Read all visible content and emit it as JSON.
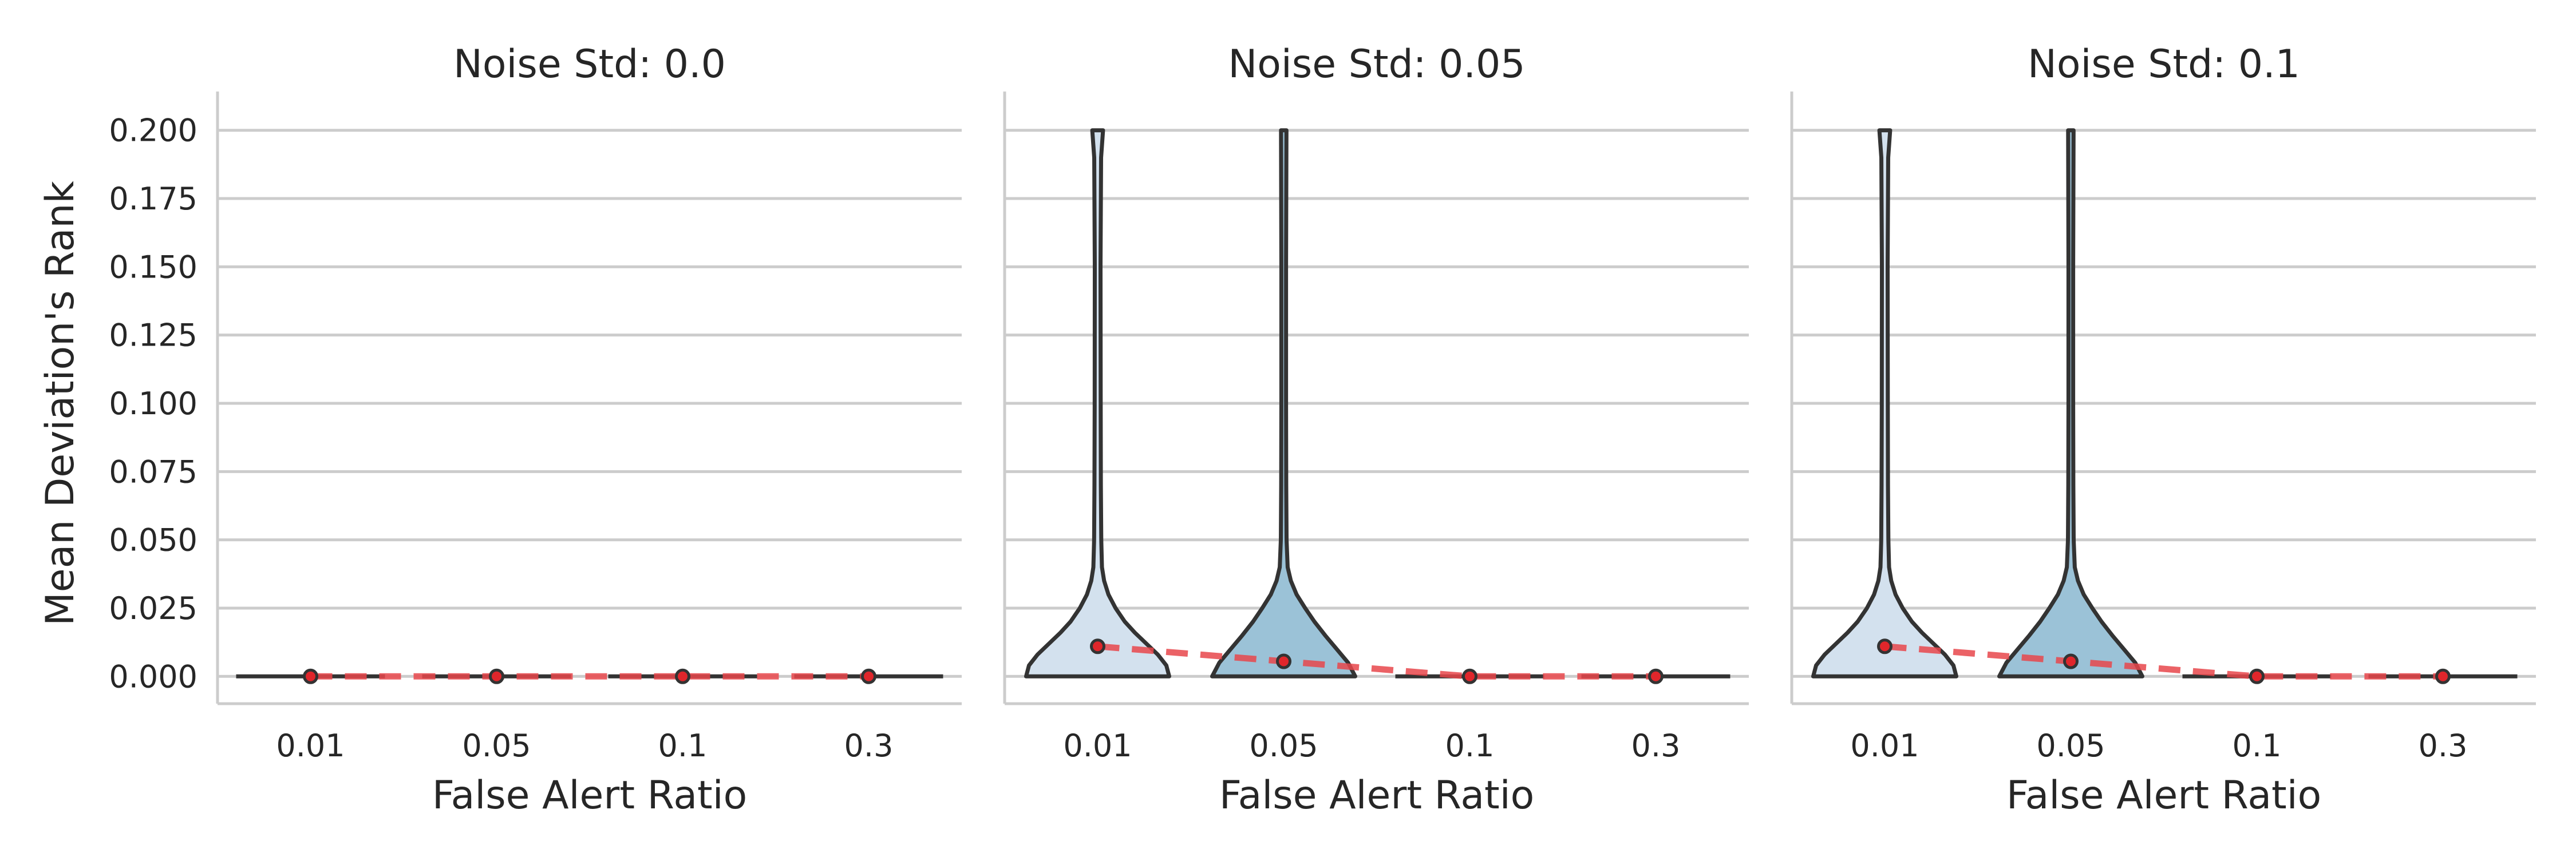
{
  "chart_data": {
    "type": "violin",
    "ylabel": "Mean Deviation's Rank",
    "xlabel": "False Alert Ratio",
    "categories": [
      "0.01",
      "0.05",
      "0.1",
      "0.3"
    ],
    "yticks": [
      "0.000",
      "0.025",
      "0.050",
      "0.075",
      "0.100",
      "0.125",
      "0.150",
      "0.175",
      "0.200"
    ],
    "ylim": [
      -0.01,
      0.21
    ],
    "grid": true,
    "colors": {
      "violin_fills": [
        "#d3e1ee",
        "#9bc2d7",
        "#5a9cc3",
        "#2c6fa8"
      ],
      "violin_edge": "#333333",
      "trend_line": "#e8464b",
      "mean_marker": "#e0262b",
      "grid": "#cccccc",
      "spine": "#cccccc"
    },
    "panels": [
      {
        "title": "Noise Std: 0.0",
        "means": [
          0.0,
          0.0,
          0.0,
          0.0
        ],
        "violins": [
          {
            "category": "0.01",
            "min": 0.0,
            "max": 0.0,
            "profile": []
          },
          {
            "category": "0.05",
            "min": 0.0,
            "max": 0.0,
            "profile": []
          },
          {
            "category": "0.1",
            "min": 0.0,
            "max": 0.0,
            "profile": []
          },
          {
            "category": "0.3",
            "min": 0.0,
            "max": 0.0,
            "profile": []
          }
        ]
      },
      {
        "title": "Noise Std: 0.05",
        "means": [
          0.011,
          0.0055,
          0.0,
          0.0
        ],
        "violins": [
          {
            "category": "0.01",
            "min": 0.0,
            "max": 0.2,
            "profile": [
              [
                0.0,
                1.0
              ],
              [
                0.004,
                0.96
              ],
              [
                0.008,
                0.84
              ],
              [
                0.012,
                0.68
              ],
              [
                0.016,
                0.52
              ],
              [
                0.02,
                0.38
              ],
              [
                0.025,
                0.25
              ],
              [
                0.03,
                0.15
              ],
              [
                0.035,
                0.09
              ],
              [
                0.04,
                0.06
              ],
              [
                0.05,
                0.05
              ],
              [
                0.07,
                0.045
              ],
              [
                0.1,
                0.042
              ],
              [
                0.15,
                0.04
              ],
              [
                0.19,
                0.048
              ],
              [
                0.2,
                0.075
              ]
            ]
          },
          {
            "category": "0.05",
            "min": 0.0,
            "max": 0.2,
            "profile": [
              [
                0.0,
                1.0
              ],
              [
                0.005,
                0.9
              ],
              [
                0.01,
                0.74
              ],
              [
                0.015,
                0.58
              ],
              [
                0.02,
                0.43
              ],
              [
                0.025,
                0.3
              ],
              [
                0.03,
                0.18
              ],
              [
                0.035,
                0.1
              ],
              [
                0.04,
                0.055
              ],
              [
                0.05,
                0.04
              ],
              [
                0.07,
                0.035
              ],
              [
                0.1,
                0.033
              ],
              [
                0.15,
                0.033
              ],
              [
                0.2,
                0.038
              ]
            ]
          },
          {
            "category": "0.1",
            "min": 0.0,
            "max": 0.0,
            "profile": []
          },
          {
            "category": "0.3",
            "min": 0.0,
            "max": 0.0,
            "profile": []
          }
        ]
      },
      {
        "title": "Noise Std: 0.1",
        "means": [
          0.011,
          0.0055,
          0.0,
          0.0
        ],
        "violins": [
          {
            "category": "0.01",
            "min": 0.0,
            "max": 0.2,
            "profile": [
              [
                0.0,
                1.0
              ],
              [
                0.004,
                0.96
              ],
              [
                0.008,
                0.84
              ],
              [
                0.012,
                0.68
              ],
              [
                0.016,
                0.52
              ],
              [
                0.02,
                0.38
              ],
              [
                0.025,
                0.25
              ],
              [
                0.03,
                0.15
              ],
              [
                0.035,
                0.09
              ],
              [
                0.04,
                0.06
              ],
              [
                0.05,
                0.05
              ],
              [
                0.07,
                0.045
              ],
              [
                0.1,
                0.042
              ],
              [
                0.15,
                0.04
              ],
              [
                0.19,
                0.048
              ],
              [
                0.2,
                0.075
              ]
            ]
          },
          {
            "category": "0.05",
            "min": 0.0,
            "max": 0.2,
            "profile": [
              [
                0.0,
                1.0
              ],
              [
                0.005,
                0.9
              ],
              [
                0.01,
                0.74
              ],
              [
                0.015,
                0.58
              ],
              [
                0.02,
                0.43
              ],
              [
                0.025,
                0.3
              ],
              [
                0.03,
                0.18
              ],
              [
                0.035,
                0.1
              ],
              [
                0.04,
                0.055
              ],
              [
                0.05,
                0.04
              ],
              [
                0.07,
                0.035
              ],
              [
                0.1,
                0.033
              ],
              [
                0.15,
                0.033
              ],
              [
                0.2,
                0.038
              ]
            ]
          },
          {
            "category": "0.1",
            "min": 0.0,
            "max": 0.0,
            "profile": []
          },
          {
            "category": "0.3",
            "min": 0.0,
            "max": 0.0,
            "profile": []
          }
        ]
      }
    ]
  }
}
